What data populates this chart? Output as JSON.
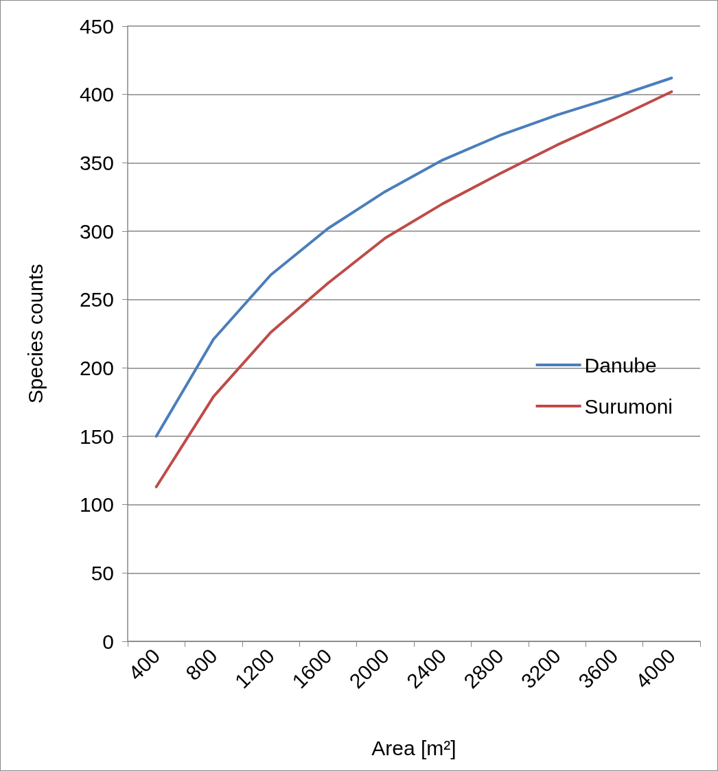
{
  "chart_data": {
    "type": "line",
    "xlabel": "Area [m²]",
    "ylabel": "Species counts",
    "categories": [
      "400",
      "800",
      "1200",
      "1600",
      "2000",
      "2400",
      "2800",
      "3200",
      "3600",
      "4000"
    ],
    "series": [
      {
        "name": "Danube",
        "color": "#4a7ebb",
        "values": [
          150,
          221,
          268,
          302,
          329,
          352,
          370,
          385,
          398,
          412
        ]
      },
      {
        "name": "Surumoni",
        "color": "#be4b48",
        "values": [
          113,
          179,
          226,
          262,
          295,
          320,
          342,
          363,
          382,
          402
        ]
      }
    ],
    "ylim": [
      0,
      450
    ],
    "yticks": [
      0,
      50,
      100,
      150,
      200,
      250,
      300,
      350,
      400,
      450
    ],
    "grid": "y",
    "legend": "right",
    "marker": "none",
    "line_style": "solid"
  }
}
